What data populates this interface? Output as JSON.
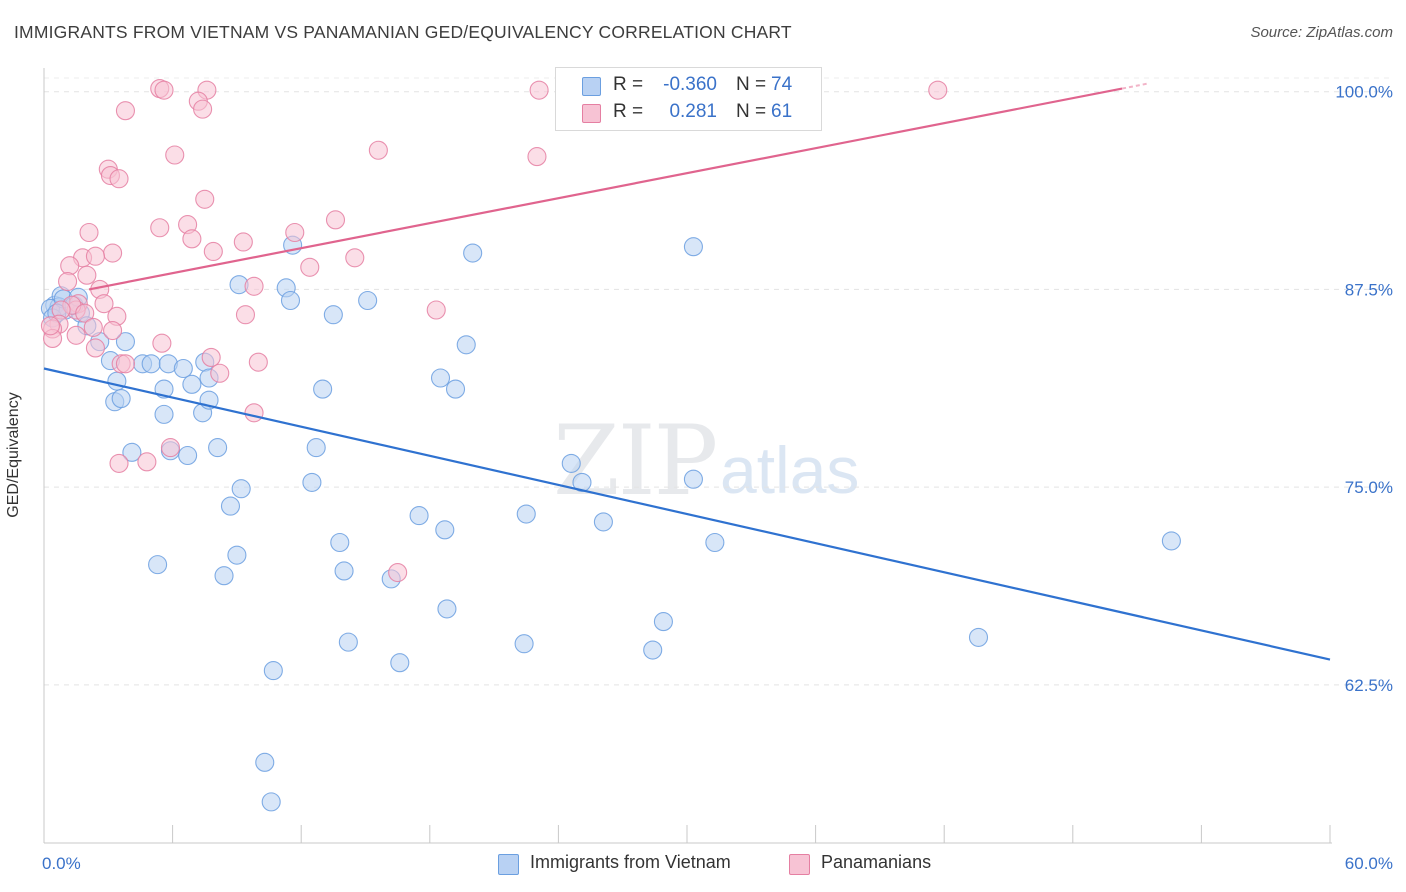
{
  "title": "IMMIGRANTS FROM VIETNAM VS PANAMANIAN GED/EQUIVALENCY CORRELATION CHART",
  "source": "Source: ZipAtlas.com",
  "watermark": {
    "zip": "ZIP",
    "atlas": "atlas"
  },
  "legend": {
    "rows": [
      {
        "r_label": "R =",
        "r_value": "-0.360",
        "n_label": "N =",
        "n_value": "74",
        "color": "#a9c6f0"
      },
      {
        "r_label": "R =",
        "r_value": "0.281",
        "n_label": "N =",
        "n_value": "61",
        "color": "#f6b9cd"
      }
    ]
  },
  "chart_data": {
    "type": "scatter",
    "title": "IMMIGRANTS FROM VIETNAM VS PANAMANIAN GED/EQUIVALENCY CORRELATION CHART",
    "xlabel": "",
    "ylabel": "GED/Equivalency",
    "xlim": [
      0,
      60
    ],
    "ylim": [
      52.5,
      101.5
    ],
    "x_tick_labels": [
      "0.0%",
      "60.0%"
    ],
    "y_tick_labels": [
      "100.0%",
      "87.5%",
      "75.0%",
      "62.5%"
    ],
    "y_ticks": [
      100,
      87.5,
      75,
      62.5
    ],
    "grid": true,
    "legend_position": "top-center",
    "series": [
      {
        "name": "Immigrants from Vietnam",
        "color": "#6b9fe0",
        "fill": "#b8d1f3",
        "trend": {
          "x": [
            0,
            60
          ],
          "y": [
            82.5,
            64.1
          ]
        },
        "points": [
          [
            0.5,
            86.5
          ],
          [
            0.8,
            87.1
          ],
          [
            1.0,
            86.2
          ],
          [
            0.7,
            86.4
          ],
          [
            0.3,
            86.3
          ],
          [
            0.9,
            86.9
          ],
          [
            1.7,
            86.0
          ],
          [
            1.4,
            86.5
          ],
          [
            1.6,
            87.0
          ],
          [
            2.0,
            85.2
          ],
          [
            2.6,
            84.2
          ],
          [
            3.8,
            84.2
          ],
          [
            3.1,
            83.0
          ],
          [
            3.4,
            81.7
          ],
          [
            4.6,
            82.8
          ],
          [
            5.0,
            82.8
          ],
          [
            3.3,
            80.4
          ],
          [
            3.6,
            80.6
          ],
          [
            5.8,
            82.8
          ],
          [
            6.5,
            82.5
          ],
          [
            6.9,
            81.5
          ],
          [
            7.5,
            82.9
          ],
          [
            5.6,
            81.2
          ],
          [
            7.7,
            81.9
          ],
          [
            5.6,
            79.6
          ],
          [
            7.4,
            79.7
          ],
          [
            7.7,
            80.5
          ],
          [
            5.9,
            77.3
          ],
          [
            4.1,
            77.2
          ],
          [
            6.7,
            77.0
          ],
          [
            8.1,
            77.5
          ],
          [
            9.1,
            87.8
          ],
          [
            11.3,
            87.6
          ],
          [
            11.5,
            86.8
          ],
          [
            11.6,
            90.3
          ],
          [
            13.5,
            85.9
          ],
          [
            15.1,
            86.8
          ],
          [
            19.7,
            84.0
          ],
          [
            20.0,
            89.8
          ],
          [
            12.7,
            77.5
          ],
          [
            13.0,
            81.2
          ],
          [
            18.5,
            81.9
          ],
          [
            19.2,
            81.2
          ],
          [
            9.2,
            74.9
          ],
          [
            8.7,
            73.8
          ],
          [
            12.5,
            75.3
          ],
          [
            17.5,
            73.2
          ],
          [
            18.7,
            72.3
          ],
          [
            22.5,
            73.3
          ],
          [
            24.6,
            76.5
          ],
          [
            25.1,
            75.3
          ],
          [
            26.1,
            72.8
          ],
          [
            30.3,
            75.5
          ],
          [
            31.3,
            71.5
          ],
          [
            30.3,
            90.2
          ],
          [
            52.6,
            71.6
          ],
          [
            5.3,
            70.1
          ],
          [
            8.4,
            69.4
          ],
          [
            9.0,
            70.7
          ],
          [
            13.8,
            71.5
          ],
          [
            14.0,
            69.7
          ],
          [
            16.2,
            69.2
          ],
          [
            18.8,
            67.3
          ],
          [
            14.2,
            65.2
          ],
          [
            16.6,
            63.9
          ],
          [
            22.4,
            65.1
          ],
          [
            28.9,
            66.5
          ],
          [
            28.4,
            64.7
          ],
          [
            43.6,
            65.5
          ],
          [
            10.7,
            63.4
          ],
          [
            10.3,
            57.6
          ],
          [
            10.6,
            55.1
          ],
          [
            0.4,
            85.7
          ],
          [
            0.6,
            86.0
          ]
        ]
      },
      {
        "name": "Panamanians",
        "color": "#e57fa2",
        "fill": "#f7c3d4",
        "trend": {
          "x": [
            2.1,
            50.3
          ],
          "y": [
            87.5,
            100.2
          ]
        },
        "points": [
          [
            5.4,
            100.2
          ],
          [
            5.6,
            100.1
          ],
          [
            7.6,
            100.1
          ],
          [
            7.2,
            99.4
          ],
          [
            7.4,
            98.9
          ],
          [
            3.8,
            98.8
          ],
          [
            23.1,
            100.1
          ],
          [
            41.7,
            100.1
          ],
          [
            6.1,
            96.0
          ],
          [
            3.0,
            95.1
          ],
          [
            3.1,
            94.7
          ],
          [
            3.5,
            94.5
          ],
          [
            15.6,
            96.3
          ],
          [
            23.0,
            95.9
          ],
          [
            7.5,
            93.2
          ],
          [
            2.1,
            91.1
          ],
          [
            5.4,
            91.4
          ],
          [
            6.7,
            91.6
          ],
          [
            6.9,
            90.7
          ],
          [
            9.3,
            90.5
          ],
          [
            11.7,
            91.1
          ],
          [
            13.6,
            91.9
          ],
          [
            3.2,
            89.8
          ],
          [
            1.8,
            89.5
          ],
          [
            1.2,
            89.0
          ],
          [
            2.4,
            89.6
          ],
          [
            14.5,
            89.5
          ],
          [
            7.9,
            89.9
          ],
          [
            12.4,
            88.9
          ],
          [
            2.0,
            88.4
          ],
          [
            1.1,
            88.0
          ],
          [
            2.6,
            87.5
          ],
          [
            9.8,
            87.7
          ],
          [
            1.6,
            86.6
          ],
          [
            1.5,
            86.2
          ],
          [
            2.8,
            86.6
          ],
          [
            1.3,
            86.5
          ],
          [
            0.8,
            86.2
          ],
          [
            1.9,
            86.0
          ],
          [
            3.4,
            85.8
          ],
          [
            9.4,
            85.9
          ],
          [
            18.3,
            86.2
          ],
          [
            0.7,
            85.3
          ],
          [
            0.4,
            85.0
          ],
          [
            2.3,
            85.1
          ],
          [
            1.5,
            84.6
          ],
          [
            3.2,
            84.9
          ],
          [
            5.5,
            84.1
          ],
          [
            7.8,
            83.2
          ],
          [
            3.6,
            82.8
          ],
          [
            3.8,
            82.8
          ],
          [
            2.4,
            83.8
          ],
          [
            10.0,
            82.9
          ],
          [
            8.2,
            82.2
          ],
          [
            5.9,
            77.5
          ],
          [
            3.5,
            76.5
          ],
          [
            4.8,
            76.6
          ],
          [
            9.8,
            79.7
          ],
          [
            16.5,
            69.6
          ],
          [
            0.4,
            84.4
          ],
          [
            0.3,
            85.2
          ]
        ]
      }
    ]
  }
}
